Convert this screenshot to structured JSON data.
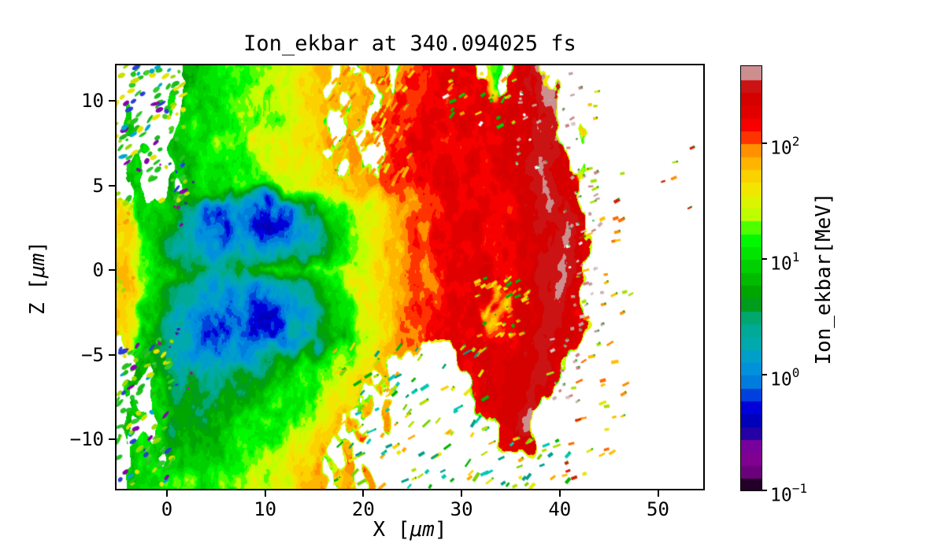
{
  "figure": {
    "background": "#ffffff"
  },
  "chart_data": {
    "type": "heatmap",
    "title": "Ion_ekbar at 340.094025 fs",
    "xlabel": {
      "pre": "X [",
      "mu": "μm",
      "post": "]"
    },
    "ylabel": {
      "pre": "Z [",
      "mu": "μm",
      "post": "]"
    },
    "x_range": [
      -5.29,
      54.77
    ],
    "z_range": [
      -13.02,
      12.19
    ],
    "x_ticks": [
      {
        "v": 0,
        "label": "0"
      },
      {
        "v": 10,
        "label": "10"
      },
      {
        "v": 20,
        "label": "20"
      },
      {
        "v": 30,
        "label": "30"
      },
      {
        "v": 40,
        "label": "40"
      },
      {
        "v": 50,
        "label": "50"
      }
    ],
    "z_ticks": [
      {
        "v": 10,
        "label": "10"
      },
      {
        "v": 5,
        "label": "5"
      },
      {
        "v": 0,
        "label": "0"
      },
      {
        "v": -5,
        "label": "−5"
      },
      {
        "v": -10,
        "label": "−10"
      }
    ],
    "colorbar": {
      "label": "Ion_ekbar[MeV]",
      "scale": "log",
      "unit": "MeV",
      "vmin_mev": 0.1,
      "vmax_mev": 465,
      "segments": 33,
      "colormap": "nipy_spectral",
      "ticks": [
        {
          "value": 100,
          "base": "10",
          "exp": "2"
        },
        {
          "value": 10,
          "base": "10",
          "exp": "1"
        },
        {
          "value": 1,
          "base": "10",
          "exp": "0"
        },
        {
          "value": 0.1,
          "base": "10",
          "exp": "−1"
        }
      ]
    },
    "colormap_stops": [
      [
        0.0,
        0.0,
        0.0,
        0.0
      ],
      [
        0.05,
        0.4667,
        0.0,
        0.5333
      ],
      [
        0.1,
        0.5333,
        0.0,
        0.6
      ],
      [
        0.15,
        0.0,
        0.0,
        0.6667
      ],
      [
        0.2,
        0.0,
        0.0,
        0.8667
      ],
      [
        0.25,
        0.0,
        0.4667,
        0.8667
      ],
      [
        0.3,
        0.0,
        0.6,
        0.8667
      ],
      [
        0.35,
        0.0,
        0.6667,
        0.6667
      ],
      [
        0.4,
        0.0,
        0.6667,
        0.5333
      ],
      [
        0.45,
        0.0,
        0.6,
        0.0
      ],
      [
        0.5,
        0.0,
        0.7333,
        0.0
      ],
      [
        0.55,
        0.0,
        0.8667,
        0.0
      ],
      [
        0.6,
        0.0,
        1.0,
        0.0
      ],
      [
        0.65,
        0.7333,
        1.0,
        0.0
      ],
      [
        0.7,
        0.9333,
        0.9333,
        0.0
      ],
      [
        0.75,
        1.0,
        0.8,
        0.0
      ],
      [
        0.8,
        1.0,
        0.6,
        0.0
      ],
      [
        0.85,
        1.0,
        0.0,
        0.0
      ],
      [
        0.9,
        0.8667,
        0.0,
        0.0
      ],
      [
        0.95,
        0.8,
        0.0,
        0.0
      ],
      [
        1.0,
        0.8,
        0.8,
        0.8
      ]
    ],
    "grid": {
      "cols": 60,
      "rows": 25,
      "x_extent": [
        -5.3,
        54.7
      ],
      "z_extent": [
        12.5,
        -12.7
      ],
      "encoding": {
        "null_char": ".",
        "chars": "0123456789ABCDEFGHIJKLMNOPQRSTUVWXYZ",
        "log10_mev_min": -1.0,
        "log10_mev_max": 2.67
      },
      "rows_data": [
        ".......IJJKKLLMMNNOPQQ.R.RSS.STUUVVVV.M.VWXY................",
        ".......IJJKKLLMMNNOPQ.QRR.ST.TUUVVVVVUM.VWXXY...............",
        ".....J.IJKKLLMMNNOOPQQR.RS.TTUUVVVVVVVVWVWWXY...............",
        ".J.....IJKKLLMMNNOOPQR.RS.TUUUVVVVVVVVVWVWWXY...............",
        "......JJKKLLMMNNOOPQQR.S.S.TUUVVVVVVVVVVWWXYY..Q............",
        "..J...IJJKKLLMMNNOOPQ.RRS..TUUVVVVVVVVVWWWXYXV..............",
        ".I....JIJJKKLLMMNNOOPQR.RS.TUUUVVVVVVVVWWXXYXW.O............",
        "..J..I.IIJJKKLMMNNOOPPQRRSSTUUUVVVVVVVVVWWXYXWV.............",
        "POJJIIIGDBA89A98ABDHIKMNOOPQRRSTUUVVVVVVVWWXYXW.............",
        "PPJJIGECA877A98778BCEHKMNOPQRSTTUUVVWVVVVWWXXYXW............",
        "QPKJHFDCBA98ABA889BCDFIKNOPQRSTTUUVVWVVVVWWXXYXW............",
        "QQKJHFEDCBBCBBCBBCDDEGIKNOPQRSTTUUVVWVVVVWWXXYXW............",
        "RQMKIHGGGFEEFFGHIJKKLMNONOPQRSTTUUVVWWVVVWWXXYXW............",
        "RQLJHFEDCBBABBABBCDDFHJLNOPQRSTTUUVVWWPVVWWXXYXW............",
        "QPKIHFDCB988A98879BCEGJLNOPQRSTTUUVVWPWOVWWXXYXW............",
        "QPJIGECBA877A98789BCDGIKNOPQRSTTUUVVWWPVVWWXYXWV............",
        ".PJHFDBBA98ABA989ABBCEHJLNOQRSTTUUVVWVWVVWXYXWV.............",
        "..JIGDCCBBCCBBCDEFGHIKLMNOPQ..Q....VVWWWWWXYXW..............",
        "..I.JFDEDCDDEFGHIJKKLMNOPQ.R........VWWWWWXYXW..............",
        ".J..IGEFEEFFGHIJJKLLMNOPQ.R.........VWWWWXYXW...............",
        "..J.IHFGFFGGHIJJKLMMNOPQ.R.Q.........VWWWXY.................",
        ".I..JGEHGGHHIJKKLMNNOPQ.R..S...........VWXY.................",
        "..J.IHGIHHIIJKLLMNOOPQ.R.S.............VVWW.................",
        "..JI.JHJIIJJKLMMNOPPQR.S....................................",
        ".KJJKKLLKKLLMMNNOOPQR.RS.S.................................."
      ]
    },
    "speckle_zones": [
      {
        "x": [
          -5.2,
          2.2
        ],
        "z": [
          4,
          12.1
        ],
        "n": 115,
        "palette": "fringe",
        "len": [
          4,
          13
        ],
        "angle": [
          -60,
          -15
        ],
        "shape": "blob"
      },
      {
        "x": [
          -5.2,
          0.5
        ],
        "z": [
          -12.9,
          -4
        ],
        "n": 100,
        "palette": "fringe",
        "len": [
          4,
          13
        ],
        "angle": [
          -60,
          -15
        ],
        "shape": "blob"
      },
      {
        "x": [
          -5.3,
          -3.4
        ],
        "z": [
          -4,
          4
        ],
        "n": 18,
        "palette": "fringe_warm",
        "len": [
          4,
          9
        ],
        "angle": [
          -50,
          -20
        ],
        "shape": "blob"
      },
      {
        "x": [
          -1,
          3.5
        ],
        "z": [
          2,
          7
        ],
        "n": 8,
        "palette": "purple",
        "len": [
          2,
          5
        ],
        "angle": [
          -45,
          0
        ],
        "shape": "dash"
      },
      {
        "x": [
          -1,
          3
        ],
        "z": [
          -7,
          -3
        ],
        "n": 8,
        "palette": "purple",
        "len": [
          2,
          5
        ],
        "angle": [
          -45,
          0
        ],
        "shape": "dash"
      },
      {
        "x": [
          16.5,
          25
        ],
        "z": [
          5,
          12.1
        ],
        "n": 60,
        "palette": "warm_streak",
        "len": [
          6,
          16
        ],
        "angle": [
          -68,
          -45
        ],
        "shape": "dash"
      },
      {
        "x": [
          17,
          33
        ],
        "z": [
          -12.8,
          -4.5
        ],
        "n": 115,
        "palette": "gap",
        "len": [
          5,
          13
        ],
        "angle": [
          -60,
          -22
        ],
        "shape": "dash"
      },
      {
        "x": [
          33,
          41
        ],
        "z": [
          -12.8,
          -9.8
        ],
        "n": 26,
        "palette": "gap",
        "len": [
          4,
          10
        ],
        "angle": [
          -55,
          -20
        ],
        "shape": "dash"
      },
      {
        "x": [
          39,
          47
        ],
        "z": [
          -11,
          -4
        ],
        "n": 26,
        "palette": "warm_dash",
        "len": [
          5,
          11
        ],
        "angle": [
          -35,
          -5
        ],
        "shape": "dash"
      },
      {
        "x": [
          41.5,
          47.5
        ],
        "z": [
          -3,
          11.8
        ],
        "n": 30,
        "palette": "warm_dash",
        "len": [
          5,
          10
        ],
        "angle": [
          -30,
          -5
        ],
        "shape": "dash"
      },
      {
        "x": [
          47,
          53.5
        ],
        "z": [
          2,
          9
        ],
        "n": 5,
        "palette": "warm_dash",
        "len": [
          4,
          8
        ],
        "angle": [
          -30,
          -5
        ],
        "shape": "dash"
      },
      {
        "x": [
          31.5,
          37
        ],
        "z": [
          -4.2,
          -0.2
        ],
        "n": 42,
        "palette": "cluster",
        "len": [
          4,
          10
        ],
        "angle": [
          -50,
          -10
        ],
        "shape": "dash"
      },
      {
        "x": [
          28,
          35.5
        ],
        "z": [
          8.5,
          12.1
        ],
        "n": 26,
        "palette": "cluster_green",
        "len": [
          4,
          10
        ],
        "angle": [
          -60,
          -20
        ],
        "shape": "dash"
      },
      {
        "x": [
          35.5,
          43
        ],
        "z": [
          6,
          12
        ],
        "n": 26,
        "palette": "gray",
        "len": [
          3,
          7
        ],
        "angle": [
          -50,
          0
        ],
        "shape": "dash"
      },
      {
        "x": [
          40.5,
          44.2
        ],
        "z": [
          1,
          6
        ],
        "n": 22,
        "palette": "gray",
        "len": [
          3,
          7
        ],
        "angle": [
          -50,
          0
        ],
        "shape": "dash"
      },
      {
        "x": [
          41,
          44.4
        ],
        "z": [
          -4,
          1
        ],
        "n": 22,
        "palette": "gray",
        "len": [
          3,
          7
        ],
        "angle": [
          -50,
          0
        ],
        "shape": "dash"
      },
      {
        "x": [
          39,
          42.8
        ],
        "z": [
          -8.5,
          -4
        ],
        "n": 16,
        "palette": "gray",
        "len": [
          3,
          7
        ],
        "angle": [
          -50,
          0
        ],
        "shape": "dash"
      },
      {
        "x": [
          40,
          44
        ],
        "z": [
          -12.6,
          -11.3
        ],
        "n": 5,
        "palette": "warm_dash",
        "len": [
          4,
          8
        ],
        "angle": [
          -30,
          -5
        ],
        "shape": "dash"
      }
    ],
    "palettes": {
      "fringe": [
        "#22c31f",
        "#2fca2f",
        "#49d21a",
        "#22c31f",
        "#93da00",
        "#cbdf00",
        "#2fca2f",
        "#1db81d",
        "#00a7cc",
        "#2a3fd0",
        "#8800aa",
        "#e4e400"
      ],
      "fringe_warm": [
        "#e6e000",
        "#ffc400",
        "#a5dc00",
        "#ff9e00",
        "#d2e000"
      ],
      "purple": [
        "#8800aa",
        "#a000b4",
        "#5c00c8",
        "#c400c4",
        "#2a3fd0"
      ],
      "warm_streak": [
        "#ff9800",
        "#ffb400",
        "#e8e000",
        "#ff7c00",
        "#ffd200",
        "#f0f000"
      ],
      "gap": [
        "#e8e800",
        "#b4e000",
        "#00b400",
        "#00a08c",
        "#ffaa00",
        "#00c8b4",
        "#78d200",
        "#ffd000"
      ],
      "warm_dash": [
        "#ff9000",
        "#e8e400",
        "#ff6a00",
        "#d22000",
        "#a8e000",
        "#ffc000"
      ],
      "cluster": [
        "#ffe000",
        "#ffaa00",
        "#ff8c00",
        "#00b400",
        "#e8e800"
      ],
      "cluster_green": [
        "#00b400",
        "#ffe000",
        "#a0e000",
        "#00d200",
        "#ff9800",
        "#ffffff"
      ],
      "gray": [
        "#ccaeae",
        "#c49e9e",
        "#d8c2c2",
        "#ffffff",
        "#cc8484"
      ]
    }
  }
}
